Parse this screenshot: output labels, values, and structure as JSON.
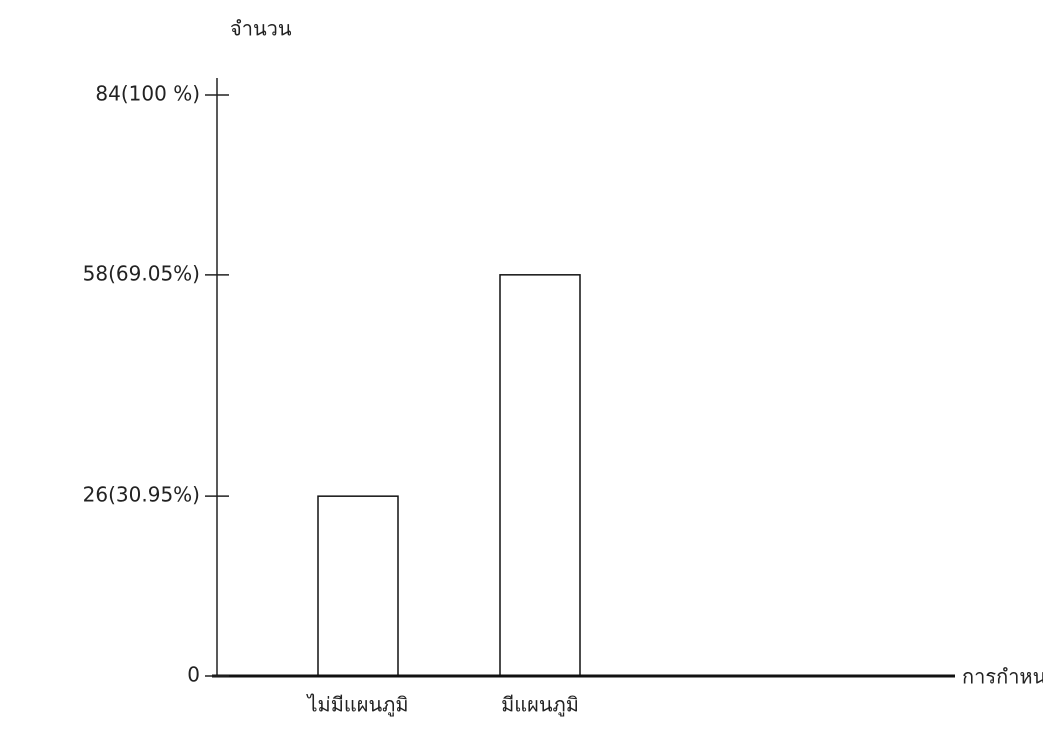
{
  "chart_data": {
    "type": "bar",
    "y_label": "จำนวน",
    "x_label": "การกำหนดแผนภูมิ",
    "categories": [
      "ไม่มีแผนภูมิ",
      "มีแผนภูมิ"
    ],
    "values": [
      26,
      58
    ],
    "color": "#111111",
    "ylim": [
      0,
      84
    ],
    "yticks": [
      0,
      {
        "value": 26,
        "label": "26(30.95%)"
      },
      {
        "value": 58,
        "label": "58(69.05%)"
      },
      {
        "value": 84,
        "label": "84(100 %)"
      }
    ],
    "grid": false
  }
}
